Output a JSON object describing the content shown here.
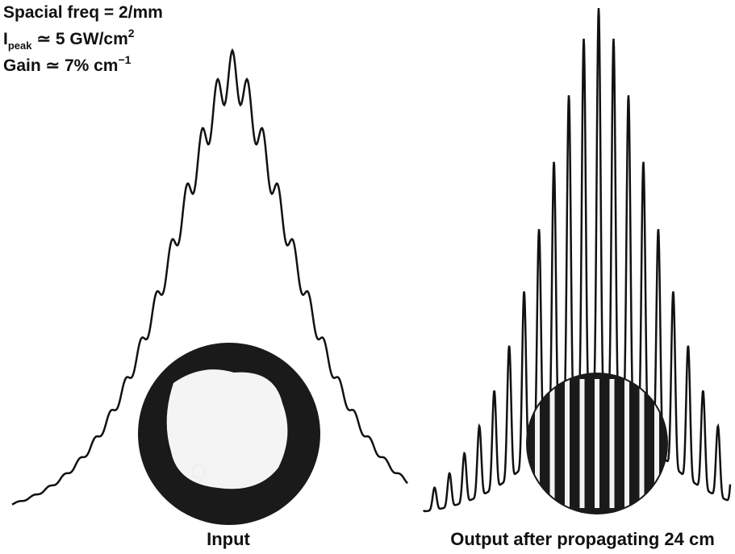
{
  "header": {
    "lines": [
      {
        "text": "Spacial freq = 2/mm"
      },
      {
        "text": "I",
        "sub": "peak",
        "rest": "≃ 5 GW/cm",
        "sup": "2"
      },
      {
        "text": "Gain ≃ 7% cm",
        "sup": "−1"
      }
    ]
  },
  "panels": [
    {
      "caption": "Input"
    },
    {
      "caption": "Output after propagating 24 cm"
    }
  ]
}
